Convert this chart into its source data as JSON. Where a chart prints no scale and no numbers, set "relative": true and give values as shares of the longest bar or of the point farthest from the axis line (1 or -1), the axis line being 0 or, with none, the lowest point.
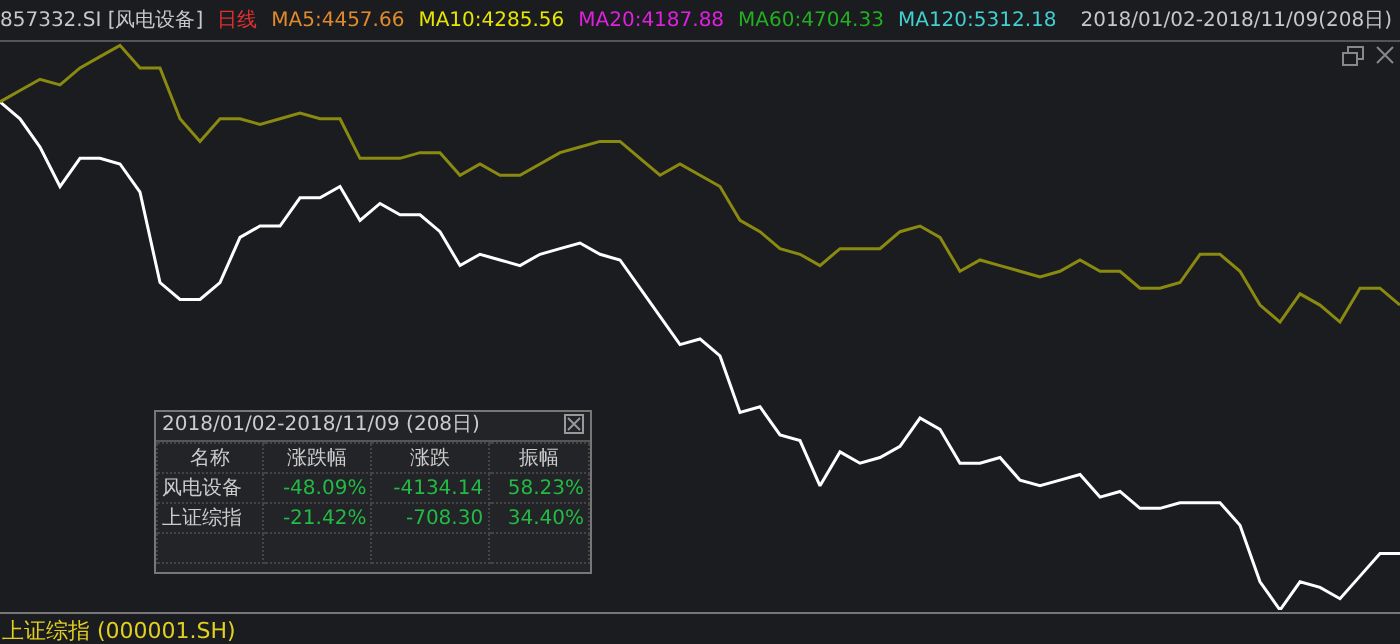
{
  "chart_data": {
    "type": "line",
    "relative": true,
    "categories": [
      null,
      null,
      null,
      null,
      null,
      null,
      null,
      null,
      null,
      null,
      null,
      null,
      null,
      null,
      null,
      null,
      null,
      null,
      null,
      null,
      null,
      null,
      null,
      null,
      null,
      null,
      null,
      null,
      null,
      null,
      null,
      null,
      null,
      null,
      null,
      null,
      null,
      null,
      null,
      null,
      null,
      null,
      null,
      null,
      null,
      null,
      null,
      null,
      null,
      null,
      null,
      null,
      null,
      null,
      null,
      null,
      null,
      null,
      null,
      null,
      null,
      null,
      null,
      null,
      null,
      null,
      null,
      null,
      null,
      null,
      null
    ],
    "series": [
      {
        "color": "#ffffff",
        "values": [
          0.9,
          0.87,
          0.82,
          0.75,
          0.8,
          0.8,
          0.79,
          0.74,
          0.58,
          0.55,
          0.55,
          0.58,
          0.66,
          0.68,
          0.68,
          0.73,
          0.73,
          0.75,
          0.69,
          0.72,
          0.7,
          0.7,
          0.67,
          0.61,
          0.63,
          0.62,
          0.61,
          0.63,
          0.64,
          0.65,
          0.63,
          0.62,
          0.57,
          0.52,
          0.47,
          0.48,
          0.45,
          0.35,
          0.36,
          0.31,
          0.3,
          0.22,
          0.28,
          0.26,
          0.27,
          0.29,
          0.34,
          0.32,
          0.26,
          0.26,
          0.27,
          0.23,
          0.22,
          0.23,
          0.24,
          0.2,
          0.21,
          0.18,
          0.18,
          0.19,
          0.19,
          0.19,
          0.15,
          0.05,
          0,
          0.05,
          0.04,
          0.02,
          0.06,
          0.1,
          0.1
        ]
      },
      {
        "color": "#8a8a10",
        "values": [
          0.9,
          0.92,
          0.94,
          0.93,
          0.96,
          0.98,
          1,
          0.96,
          0.96,
          0.87,
          0.83,
          0.87,
          0.87,
          0.86,
          0.87,
          0.88,
          0.87,
          0.87,
          0.8,
          0.8,
          0.8,
          0.81,
          0.81,
          0.77,
          0.79,
          0.77,
          0.77,
          0.79,
          0.81,
          0.82,
          0.83,
          0.83,
          0.8,
          0.77,
          0.79,
          0.77,
          0.75,
          0.69,
          0.67,
          0.64,
          0.63,
          0.61,
          0.64,
          0.64,
          0.64,
          0.67,
          0.68,
          0.66,
          0.6,
          0.62,
          0.61,
          0.6,
          0.59,
          0.6,
          0.62,
          0.6,
          0.6,
          0.57,
          0.57,
          0.58,
          0.63,
          0.63,
          0.6,
          0.54,
          0.51,
          0.56,
          0.54,
          0.51,
          0.57,
          0.57,
          0.54
        ]
      }
    ],
    "annotations": [
      "857332.SI [风电设备]",
      "日线",
      "MA5:4457.66",
      "MA10:4285.56",
      "MA20:4187.88",
      "MA60:4704.33",
      "MA120:5312.18",
      "2018/01/02-2018/11/09(208日)",
      "2018/01/02-2018/11/09 (208日)",
      "名称",
      "涨跌幅",
      "涨跌",
      "振幅",
      "风电设备",
      "-48.09%",
      "-4134.14",
      "58.23%",
      "上证综指",
      "-21.42%",
      "-708.30",
      "34.40%",
      "上证综指 (000001.SH)"
    ],
    "grid": false,
    "legend": false,
    "marker": "none",
    "line_style": "solid"
  }
}
